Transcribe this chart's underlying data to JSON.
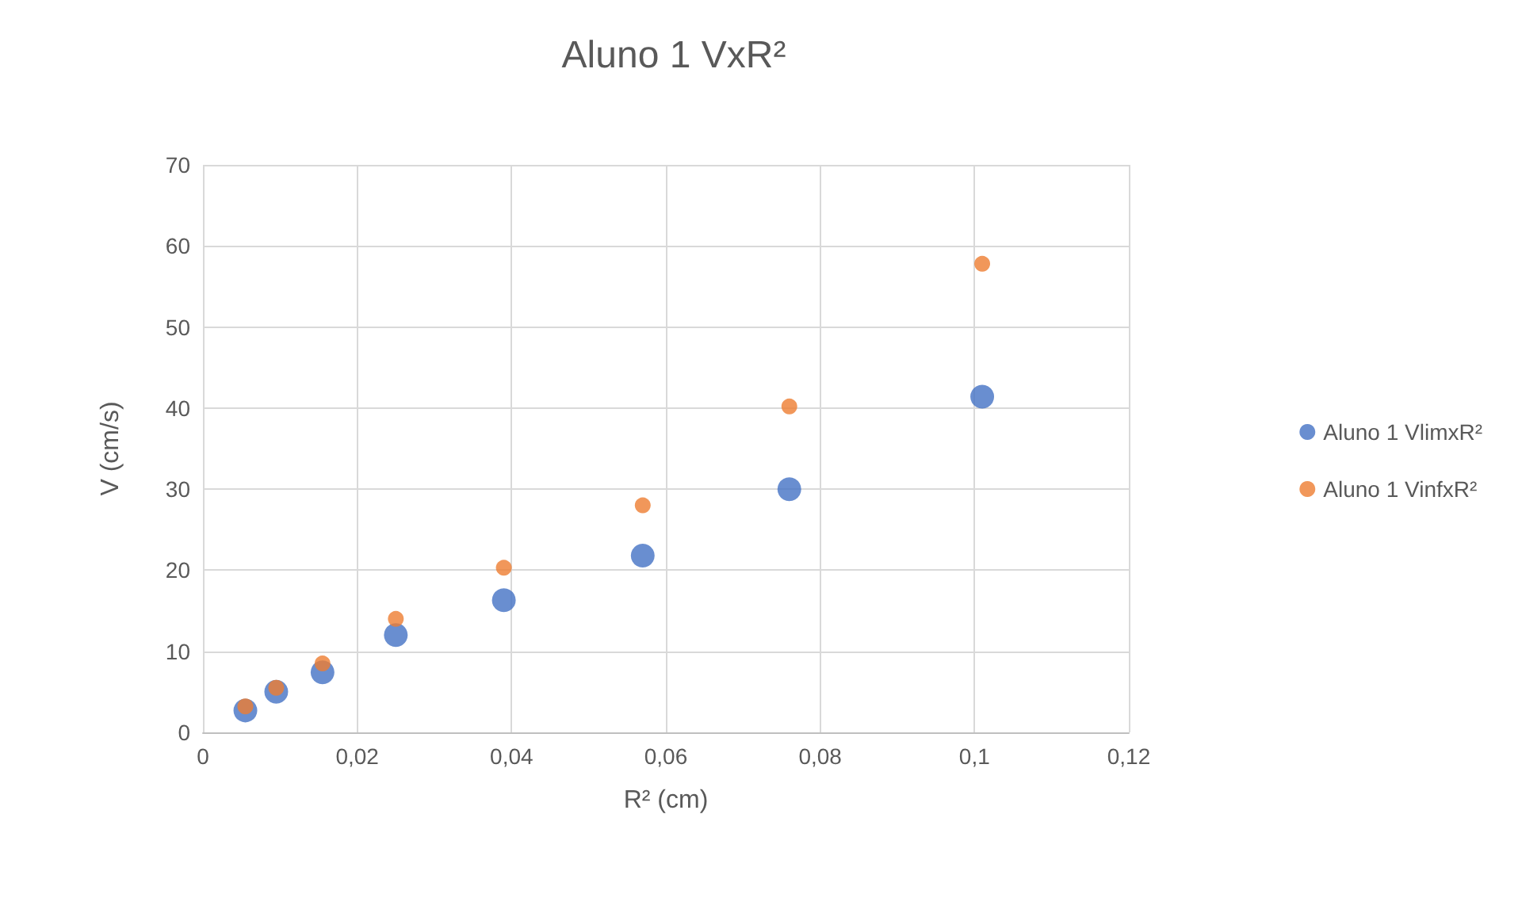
{
  "chart_data": {
    "type": "scatter",
    "title": "Aluno 1 VxR²",
    "xlabel": "R² (cm)",
    "ylabel": "V (cm/s)",
    "x": [
      0.0055,
      0.0095,
      0.0155,
      0.025,
      0.039,
      0.057,
      0.076,
      0.101
    ],
    "series": [
      {
        "name": "Aluno 1 VlimxR²",
        "color": "#4472c4",
        "values": [
          2.7,
          5,
          7.4,
          12,
          16.3,
          21.8,
          30,
          41.4
        ]
      },
      {
        "name": "Aluno 1 VinfxR²",
        "color": "#ed7d31",
        "values": [
          3.2,
          5.5,
          8.5,
          14,
          20.3,
          28,
          40.2,
          57.8
        ]
      }
    ],
    "xlim": [
      0,
      0.12
    ],
    "xticks": [
      {
        "value": 0,
        "label": "0"
      },
      {
        "value": 0.02,
        "label": "0,02"
      },
      {
        "value": 0.04,
        "label": "0,04"
      },
      {
        "value": 0.06,
        "label": "0,06"
      },
      {
        "value": 0.08,
        "label": "0,08"
      },
      {
        "value": 0.1,
        "label": "0,1"
      },
      {
        "value": 0.12,
        "label": "0,12"
      }
    ],
    "ylim": [
      0,
      70
    ],
    "yticks": [
      0,
      10,
      20,
      30,
      40,
      50,
      60,
      70
    ],
    "grid": true,
    "legend": "right",
    "marker": "circle"
  }
}
